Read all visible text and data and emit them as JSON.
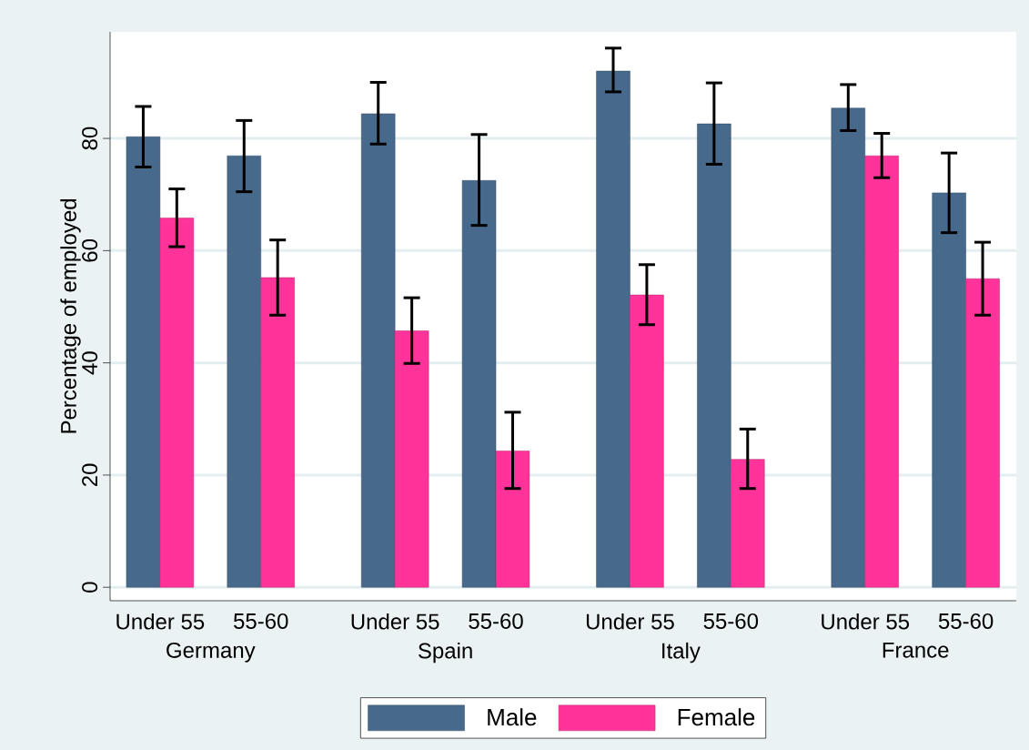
{
  "chart_data": {
    "type": "bar",
    "categories": [
      "Under 55",
      "55-60",
      "Under 55",
      "55-60",
      "Under 55",
      "55-60",
      "Under 55",
      "55-60"
    ],
    "annotations": [
      "Germany",
      "Spain",
      "Italy",
      "France"
    ],
    "ylabel": "Percentage of employed",
    "series": [
      {
        "name": "Male",
        "color": "#476a8c",
        "values": [
          80.3,
          76.9,
          84.4,
          72.5,
          92.0,
          82.6,
          85.4,
          70.3
        ],
        "errors": [
          [
            74.9,
            85.7
          ],
          [
            70.5,
            83.2
          ],
          [
            79.0,
            90.0
          ],
          [
            64.5,
            80.7
          ],
          [
            88.3,
            96.1
          ],
          [
            75.4,
            89.9
          ],
          [
            81.4,
            89.6
          ],
          [
            63.2,
            77.4
          ]
        ]
      },
      {
        "name": "Female",
        "color": "#ff3399",
        "values": [
          65.8,
          55.2,
          45.7,
          24.3,
          52.1,
          22.8,
          76.9,
          55.0
        ],
        "errors": [
          [
            60.7,
            71.0
          ],
          [
            48.5,
            61.9
          ],
          [
            39.9,
            51.6
          ],
          [
            17.6,
            31.2
          ],
          [
            46.8,
            57.5
          ],
          [
            17.6,
            28.2
          ],
          [
            73.0,
            80.9
          ],
          [
            48.5,
            61.5
          ]
        ]
      }
    ],
    "ylim": [
      -2.4,
      99
    ],
    "yticks": [
      0,
      20,
      40,
      60,
      80
    ],
    "grid": "y",
    "legend": "bottom"
  }
}
